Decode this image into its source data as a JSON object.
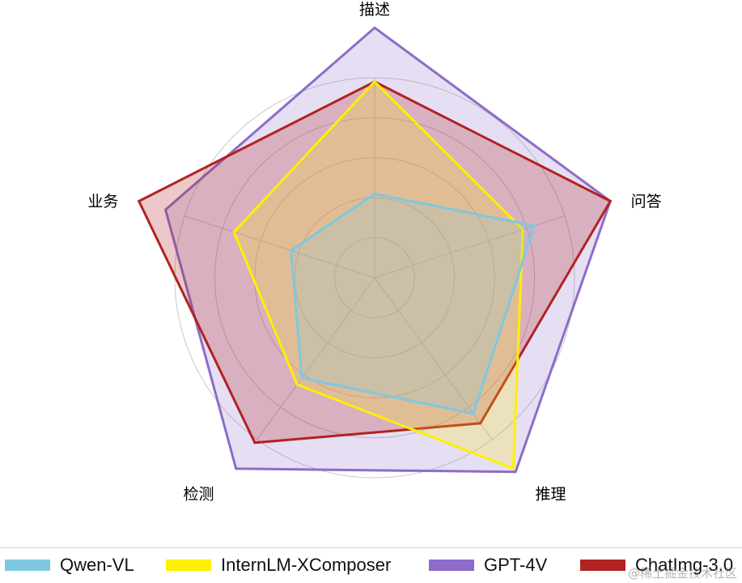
{
  "chart_data": {
    "type": "radar",
    "axes": [
      "描述",
      "问答",
      "推理",
      "检测",
      "业务"
    ],
    "rmax": 1.0,
    "rings": [
      0.2,
      0.4,
      0.6,
      0.8,
      1.0
    ],
    "grid": true,
    "legend_position": "bottom",
    "series": [
      {
        "name": "Qwen-VL",
        "color": "#7fc8e0",
        "values": [
          0.42,
          0.84,
          0.84,
          0.62,
          0.44
        ]
      },
      {
        "name": "InternLM-XComposer",
        "color": "#ffef00",
        "values": [
          0.98,
          0.78,
          1.18,
          0.66,
          0.74
        ]
      },
      {
        "name": "GPT-4V",
        "color": "#8e6cc8",
        "values": [
          1.25,
          1.24,
          1.2,
          1.18,
          1.1
        ]
      },
      {
        "name": "ChatImg-3.0",
        "color": "#b22222",
        "values": [
          0.98,
          1.24,
          0.9,
          1.02,
          1.24
        ]
      }
    ]
  },
  "watermark": "@稀土掘金技术社区"
}
